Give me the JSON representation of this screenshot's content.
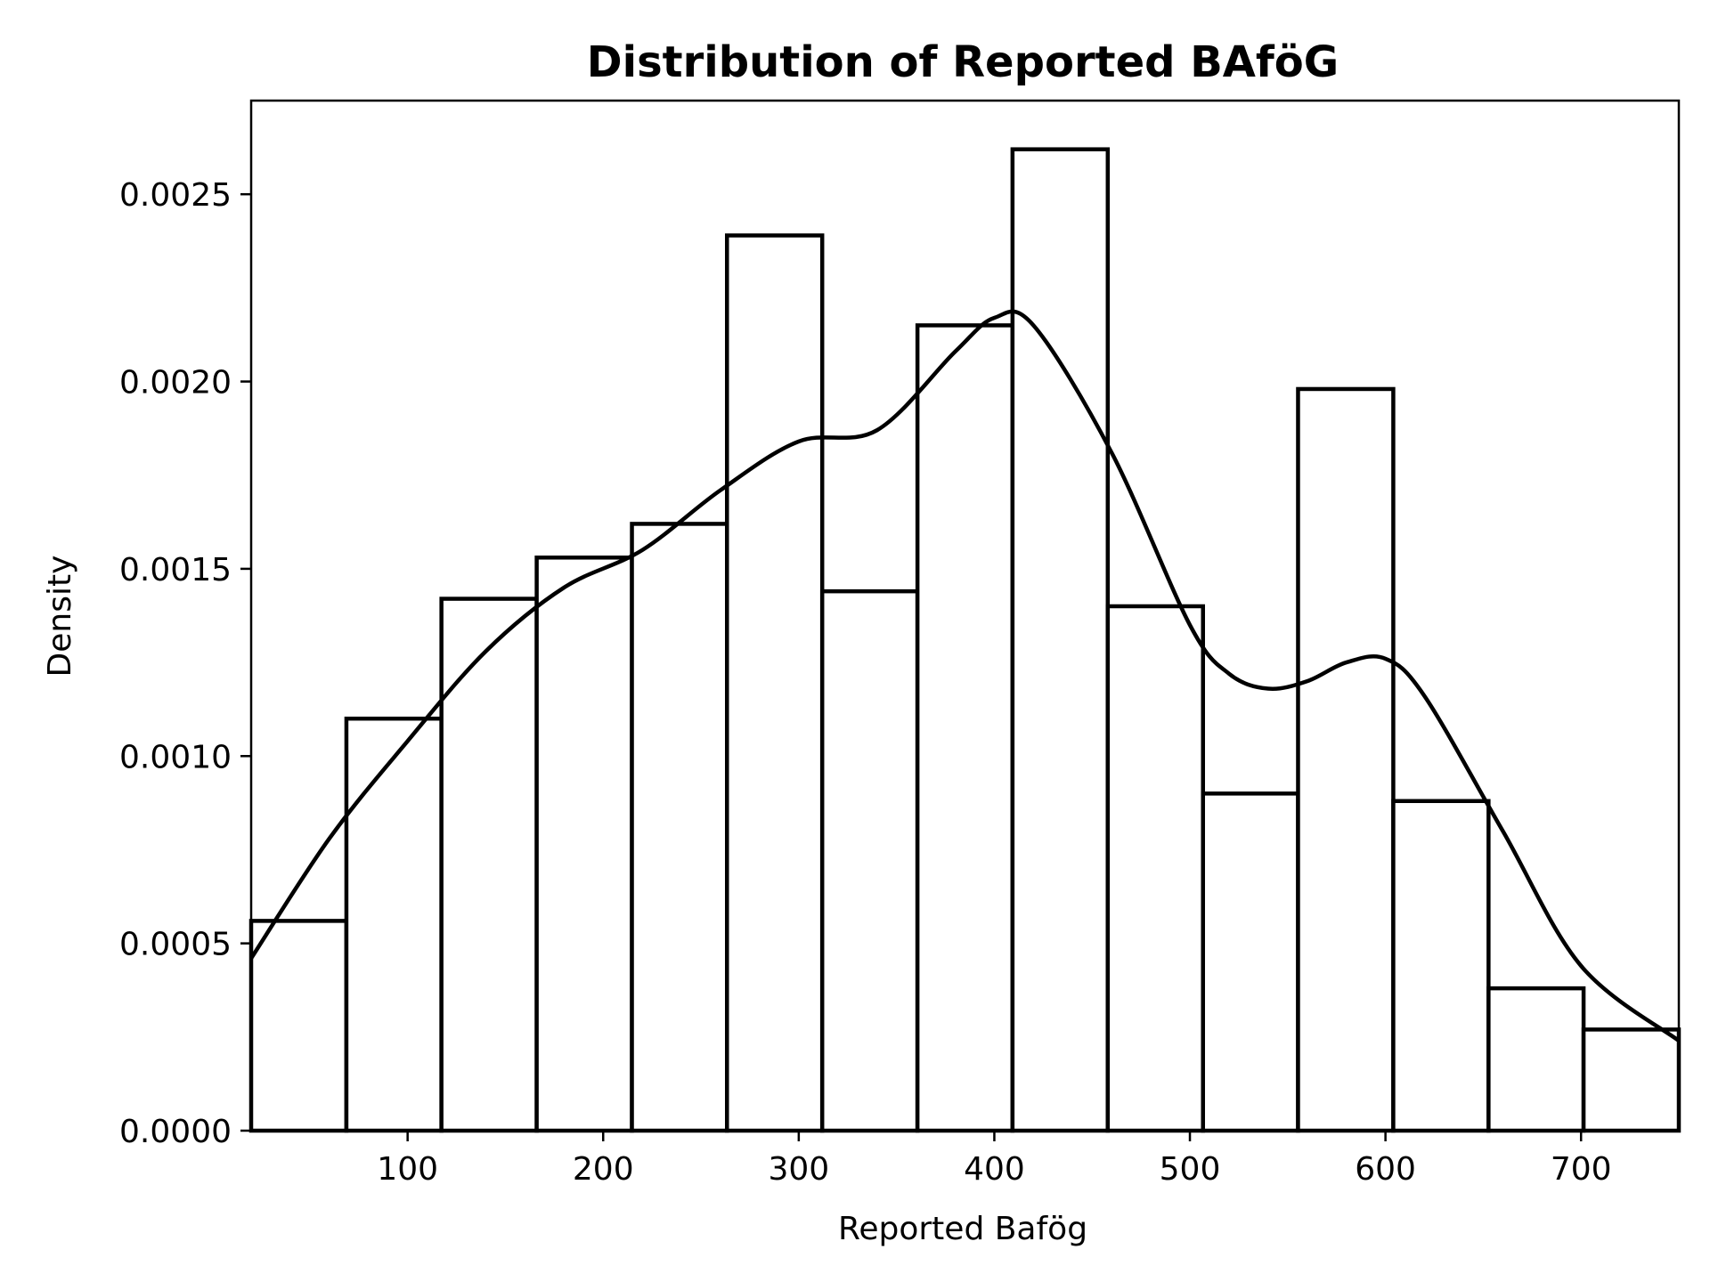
{
  "chart_data": {
    "type": "bar",
    "title": "Distribution of Reported BAföG",
    "xlabel": "Reported Bafög",
    "ylabel": "Density",
    "xlim": [
      20,
      750
    ],
    "ylim": [
      0,
      0.00275
    ],
    "x_ticks": [
      100,
      200,
      300,
      400,
      500,
      600,
      700
    ],
    "y_ticks": [
      0,
      0.0005,
      0.001,
      0.0015,
      0.002,
      0.0025
    ],
    "y_tick_labels": [
      "0.0000",
      "0.0005",
      "0.0010",
      "0.0015",
      "0.0020",
      "0.0025"
    ],
    "grid": false,
    "bin_edges": [
      20,
      68.7,
      117.3,
      166,
      214.7,
      263.3,
      312,
      360.7,
      409.3,
      458,
      506.7,
      555.3,
      604,
      652.7,
      701.3,
      750
    ],
    "density": [
      0.00056,
      0.0011,
      0.00142,
      0.00153,
      0.00162,
      0.00239,
      0.00144,
      0.00215,
      0.00262,
      0.0014,
      0.0009,
      0.00198,
      0.00088,
      0.00038,
      0.00027
    ],
    "kde": {
      "x": [
        20,
        60,
        100,
        140,
        180,
        220,
        260,
        300,
        340,
        380,
        400,
        420,
        460,
        500,
        520,
        540,
        560,
        580,
        600,
        620,
        660,
        700,
        750
      ],
      "y": [
        0.00046,
        0.00078,
        0.00104,
        0.00128,
        0.00145,
        0.00155,
        0.00171,
        0.00184,
        0.00187,
        0.00208,
        0.00217,
        0.00215,
        0.00181,
        0.00135,
        0.00122,
        0.00118,
        0.0012,
        0.00125,
        0.00126,
        0.00116,
        0.0008,
        0.00044,
        0.00024
      ]
    }
  }
}
